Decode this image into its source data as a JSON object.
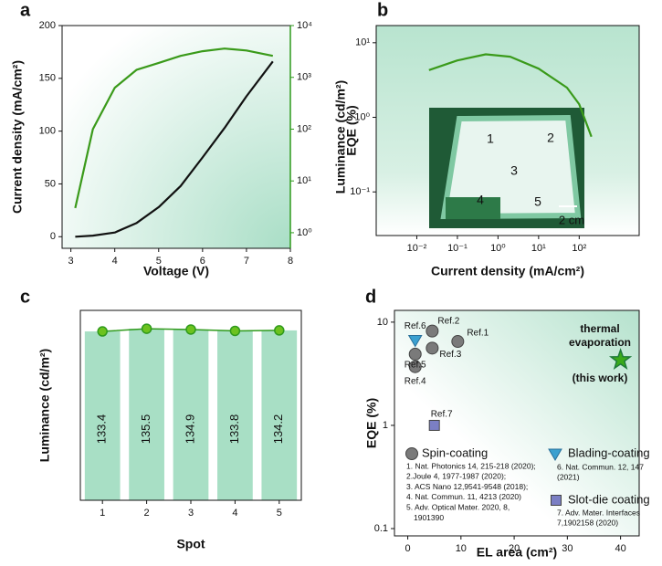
{
  "chart_data": [
    {
      "type": "line",
      "label": "a",
      "x_label": "Voltage (V)",
      "y_label": "Current density (mA/cm²)",
      "y2_label": "Luminance (cd/m²)",
      "xlim": [
        2.8,
        8
      ],
      "xticks": [
        3,
        4,
        5,
        6,
        7,
        8
      ],
      "ylim": [
        -11,
        200
      ],
      "yticks": [
        0,
        50,
        100,
        150,
        200
      ],
      "y2lim": [
        0.5,
        10000
      ],
      "y2log": true,
      "y2ticks": [
        {
          "value": 1,
          "label": "10⁰"
        },
        {
          "value": 10,
          "label": "10¹"
        },
        {
          "value": 100,
          "label": "10²"
        },
        {
          "value": 1000,
          "label": "10³"
        },
        {
          "value": 10000,
          "label": "10⁴"
        }
      ],
      "y2color": "#2f9a1c",
      "x": [
        3.1,
        3.5,
        4,
        4.5,
        5,
        5.5,
        6,
        6.5,
        7,
        7.6
      ],
      "series": [
        {
          "color": "#111111",
          "values": [
            0,
            1,
            4,
            13,
            28,
            48,
            75,
            103,
            133,
            166
          ]
        },
        {
          "color": "#3a9a1a",
          "axis": "y2",
          "values": [
            3,
            100,
            630,
            1400,
            1900,
            2600,
            3200,
            3600,
            3300,
            2600
          ]
        }
      ]
    },
    {
      "type": "line",
      "label": "b",
      "x_label": "Current density (mA/cm²)",
      "y_label": "EQE (%)",
      "xlog": true,
      "ylog": true,
      "xlim": [
        0.001,
        3000
      ],
      "xticks": [
        {
          "value": 0.01,
          "label": "10⁻²"
        },
        {
          "value": 0.1,
          "label": "10⁻¹"
        },
        {
          "value": 1,
          "label": "10⁰"
        },
        {
          "value": 10,
          "label": "10¹"
        },
        {
          "value": 100,
          "label": "10²"
        }
      ],
      "ylim": [
        0.026,
        17
      ],
      "yticks": [
        {
          "value": 0.1,
          "label": "10⁻¹"
        },
        {
          "value": 1,
          "label": "10⁰"
        },
        {
          "value": 10,
          "label": "10¹"
        }
      ],
      "x": [
        0.02,
        0.1,
        0.5,
        2,
        10,
        50,
        100,
        200
      ],
      "series": [
        {
          "color": "#3a9a1a",
          "values": [
            4.3,
            5.8,
            7,
            6.5,
            4.5,
            2.5,
            1.5,
            0.55
          ]
        }
      ],
      "inset_labels": [
        "1",
        "2",
        "3",
        "4",
        "5"
      ],
      "scale_bar": "2 cm"
    },
    {
      "type": "bar",
      "label": "c",
      "x_label": "Spot",
      "y_label": "Luminance (cd/m²)",
      "categories": [
        "1",
        "2",
        "3",
        "4",
        "5"
      ],
      "values": [
        133.4,
        135.5,
        134.9,
        133.8,
        134.2
      ],
      "ylim": [
        0,
        150
      ],
      "color": "#a8dfc5",
      "line_color": "#2f9a1c",
      "marker_color": "#6cc21f"
    },
    {
      "type": "scatter",
      "label": "d",
      "x_label": "EL area (cm²)",
      "y_label": "EQE (%)",
      "xlim": [
        -2.5,
        43.5
      ],
      "xticks": [
        0,
        10,
        20,
        30,
        40
      ],
      "ylog": true,
      "ylim": [
        0.085,
        13
      ],
      "yticks": [
        0.1,
        1,
        10
      ],
      "series": [
        {
          "name": "Spin-coating",
          "marker": "circle",
          "color": "#7a7a7a",
          "x": [
            9.4,
            4.6,
            4.6,
            1.4,
            1.4
          ],
          "values": [
            6.5,
            8.2,
            5.6,
            3.7,
            4.9
          ],
          "point_labels": [
            "Ref.1",
            "Ref.2",
            "Ref.3",
            "Ref.4",
            "Ref.5"
          ],
          "references": [
            "1. Nat. Photonics 14, 215-218 (2020);",
            "2.Joule 4, 1977-1987 (2020);",
            "3. ACS Nano 12,9541-9548 (2018);",
            "4. Nat. Commun. 11, 4213 (2020)",
            "5. Adv. Optical Mater. 2020, 8,",
            "1901390"
          ]
        },
        {
          "name": "Blading-coating",
          "marker": "triangle",
          "color": "#3ba0d0",
          "x": [
            1.4
          ],
          "values": [
            6.7
          ],
          "point_labels": [
            "Ref.6"
          ],
          "references": [
            "6. Nat. Commun. 12, 147",
            "(2021)"
          ]
        },
        {
          "name": "Slot-die coating",
          "marker": "square",
          "color": "#7b7fc4",
          "x": [
            5
          ],
          "values": [
            1.0
          ],
          "point_labels": [
            "Ref.7"
          ],
          "references": [
            "7. Adv. Mater. Interfaces",
            "7,1902158 (2020)"
          ]
        },
        {
          "marker": "star",
          "color": "#3aaa1a",
          "x": [
            40
          ],
          "values": [
            4.3
          ],
          "annotation": [
            "thermal",
            "evaporation",
            "(this work)"
          ]
        }
      ]
    }
  ]
}
